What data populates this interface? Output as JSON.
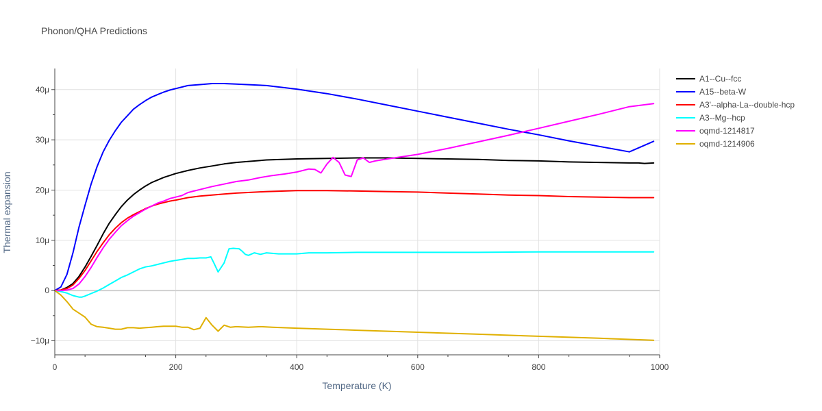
{
  "chart_data": {
    "type": "line",
    "title": "Phonon/QHA Predictions",
    "xlabel": "Temperature (K)",
    "ylabel": "Thermal expansion",
    "xlim": [
      0,
      1000
    ],
    "ylim": [
      -1.28e-05,
      4.42e-05
    ],
    "xticks": [
      0,
      200,
      400,
      600,
      800,
      1000
    ],
    "xtick_labels": [
      "0",
      "200",
      "400",
      "600",
      "800",
      "1000"
    ],
    "yticks": [
      -1e-05,
      0,
      1e-05,
      2e-05,
      3e-05,
      4e-05
    ],
    "ytick_labels": [
      "−10μ",
      "0",
      "10μ",
      "20μ",
      "30μ",
      "40μ"
    ],
    "grid": true,
    "legend_position": "top-right",
    "series": [
      {
        "name": "A1--Cu--fcc",
        "color": "#000000",
        "x": [
          0,
          10,
          20,
          30,
          40,
          50,
          60,
          70,
          80,
          90,
          100,
          110,
          120,
          130,
          140,
          150,
          160,
          170,
          180,
          190,
          200,
          220,
          240,
          260,
          280,
          300,
          350,
          400,
          450,
          500,
          550,
          600,
          650,
          700,
          750,
          800,
          850,
          900,
          950,
          965,
          975,
          990
        ],
        "y": [
          0,
          1e-07,
          6e-07,
          1.4e-06,
          2.8e-06,
          4.7e-06,
          6.8e-06,
          9e-06,
          1.13e-05,
          1.34e-05,
          1.51e-05,
          1.67e-05,
          1.8e-05,
          1.91e-05,
          2e-05,
          2.08e-05,
          2.15e-05,
          2.2e-05,
          2.25e-05,
          2.29e-05,
          2.33e-05,
          2.39e-05,
          2.44e-05,
          2.48e-05,
          2.52e-05,
          2.55e-05,
          2.6e-05,
          2.62e-05,
          2.63e-05,
          2.64e-05,
          2.64e-05,
          2.63e-05,
          2.62e-05,
          2.61e-05,
          2.59e-05,
          2.58e-05,
          2.56e-05,
          2.55e-05,
          2.54e-05,
          2.54e-05,
          2.53e-05,
          2.54e-05
        ]
      },
      {
        "name": "A15--beta-W",
        "color": "#0000ff",
        "x": [
          0,
          10,
          20,
          30,
          40,
          50,
          60,
          70,
          80,
          90,
          100,
          110,
          120,
          130,
          140,
          150,
          160,
          170,
          180,
          190,
          200,
          210,
          220,
          240,
          260,
          280,
          300,
          350,
          400,
          450,
          500,
          550,
          600,
          650,
          700,
          750,
          800,
          850,
          900,
          950,
          990
        ],
        "y": [
          0,
          7e-07,
          3.2e-06,
          7.5e-06,
          1.26e-05,
          1.7e-05,
          2.12e-05,
          2.47e-05,
          2.76e-05,
          2.99e-05,
          3.18e-05,
          3.35e-05,
          3.48e-05,
          3.61e-05,
          3.7e-05,
          3.78e-05,
          3.85e-05,
          3.9e-05,
          3.95e-05,
          3.99e-05,
          4.02e-05,
          4.05e-05,
          4.08e-05,
          4.1e-05,
          4.12e-05,
          4.12e-05,
          4.11e-05,
          4.08e-05,
          4.01e-05,
          3.92e-05,
          3.81e-05,
          3.69e-05,
          3.57e-05,
          3.45e-05,
          3.33e-05,
          3.21e-05,
          3.1e-05,
          2.98e-05,
          2.87e-05,
          2.76e-05,
          2.97e-05
        ]
      },
      {
        "name": "A3'--alpha-La--double-hcp",
        "color": "#ff0000",
        "x": [
          0,
          10,
          20,
          30,
          40,
          50,
          60,
          70,
          80,
          90,
          100,
          110,
          120,
          130,
          140,
          150,
          160,
          170,
          180,
          190,
          200,
          220,
          240,
          260,
          280,
          300,
          350,
          400,
          450,
          500,
          550,
          600,
          650,
          700,
          750,
          800,
          850,
          900,
          950,
          990
        ],
        "y": [
          0,
          1e-07,
          4e-07,
          1.1e-06,
          2.4e-06,
          4e-06,
          5.9e-06,
          7.8e-06,
          9.5e-06,
          1.11e-05,
          1.24e-05,
          1.35e-05,
          1.44e-05,
          1.51e-05,
          1.57e-05,
          1.63e-05,
          1.68e-05,
          1.72e-05,
          1.75e-05,
          1.78e-05,
          1.8e-05,
          1.85e-05,
          1.88e-05,
          1.9e-05,
          1.92e-05,
          1.94e-05,
          1.97e-05,
          1.99e-05,
          1.99e-05,
          1.98e-05,
          1.97e-05,
          1.96e-05,
          1.94e-05,
          1.92e-05,
          1.9e-05,
          1.89e-05,
          1.87e-05,
          1.86e-05,
          1.85e-05,
          1.85e-05
        ]
      },
      {
        "name": "A3--Mg--hcp",
        "color": "#00ffff",
        "x": [
          0,
          10,
          20,
          30,
          40,
          45,
          50,
          60,
          70,
          80,
          90,
          100,
          110,
          120,
          130,
          140,
          150,
          160,
          170,
          180,
          190,
          200,
          210,
          220,
          230,
          240,
          250,
          258,
          263,
          270,
          280,
          288,
          295,
          305,
          310,
          315,
          320,
          330,
          340,
          350,
          360,
          370,
          380,
          400,
          420,
          450,
          500,
          600,
          700,
          800,
          900,
          990
        ],
        "y": [
          0,
          -2e-07,
          -5e-07,
          -1e-06,
          -1.3e-06,
          -1.3e-06,
          -1.1e-06,
          -6e-07,
          -1e-07,
          5e-07,
          1.2e-06,
          1.9e-06,
          2.6e-06,
          3.1e-06,
          3.7e-06,
          4.3e-06,
          4.7e-06,
          4.9e-06,
          5.2e-06,
          5.5e-06,
          5.8e-06,
          6e-06,
          6.2e-06,
          6.4e-06,
          6.4e-06,
          6.5e-06,
          6.5e-06,
          6.7e-06,
          5.5e-06,
          3.7e-06,
          5.5e-06,
          8.3e-06,
          8.4e-06,
          8.3e-06,
          7.8e-06,
          7.2e-06,
          7e-06,
          7.5e-06,
          7.2e-06,
          7.5e-06,
          7.4e-06,
          7.3e-06,
          7.3e-06,
          7.3e-06,
          7.5e-06,
          7.5e-06,
          7.6e-06,
          7.6e-06,
          7.6e-06,
          7.7e-06,
          7.7e-06,
          7.7e-06
        ]
      },
      {
        "name": "oqmd-1214817",
        "color": "#ff00ff",
        "x": [
          0,
          10,
          20,
          30,
          40,
          50,
          60,
          70,
          80,
          90,
          100,
          110,
          120,
          130,
          140,
          150,
          160,
          170,
          180,
          190,
          200,
          210,
          220,
          240,
          260,
          280,
          300,
          320,
          340,
          360,
          380,
          400,
          420,
          430,
          440,
          450,
          460,
          470,
          480,
          490,
          500,
          510,
          520,
          530,
          550,
          600,
          650,
          700,
          750,
          800,
          850,
          900,
          950,
          990
        ],
        "y": [
          0,
          0,
          1e-07,
          4e-07,
          1.3e-06,
          2.8e-06,
          4.6e-06,
          6.6e-06,
          8.5e-06,
          1.02e-05,
          1.16e-05,
          1.29e-05,
          1.39e-05,
          1.48e-05,
          1.55e-05,
          1.62e-05,
          1.68e-05,
          1.74e-05,
          1.78e-05,
          1.83e-05,
          1.86e-05,
          1.89e-05,
          1.95e-05,
          2.01e-05,
          2.07e-05,
          2.12e-05,
          2.17e-05,
          2.2e-05,
          2.25e-05,
          2.29e-05,
          2.32e-05,
          2.36e-05,
          2.42e-05,
          2.41e-05,
          2.34e-05,
          2.52e-05,
          2.65e-05,
          2.55e-05,
          2.3e-05,
          2.27e-05,
          2.6e-05,
          2.64e-05,
          2.55e-05,
          2.58e-05,
          2.62e-05,
          2.71e-05,
          2.83e-05,
          2.96e-05,
          3.09e-05,
          3.23e-05,
          3.37e-05,
          3.51e-05,
          3.66e-05,
          3.72e-05
        ]
      },
      {
        "name": "oqmd-1214906",
        "color": "#e0b000",
        "x": [
          0,
          10,
          20,
          30,
          40,
          50,
          60,
          70,
          80,
          90,
          100,
          110,
          120,
          130,
          140,
          150,
          160,
          170,
          180,
          190,
          200,
          210,
          220,
          230,
          240,
          250,
          260,
          270,
          280,
          290,
          300,
          320,
          340,
          360,
          400,
          450,
          500,
          600,
          700,
          800,
          900,
          990
        ],
        "y": [
          0,
          -9e-07,
          -2.2e-06,
          -3.7e-06,
          -4.5e-06,
          -5.3e-06,
          -6.7e-06,
          -7.2e-06,
          -7.3e-06,
          -7.5e-06,
          -7.7e-06,
          -7.7e-06,
          -7.4e-06,
          -7.4e-06,
          -7.5e-06,
          -7.4e-06,
          -7.3e-06,
          -7.2e-06,
          -7.1e-06,
          -7.1e-06,
          -7.1e-06,
          -7.3e-06,
          -7.3e-06,
          -7.8e-06,
          -7.5e-06,
          -5.4e-06,
          -6.9e-06,
          -8.1e-06,
          -6.9e-06,
          -7.3e-06,
          -7.2e-06,
          -7.3e-06,
          -7.2e-06,
          -7.3e-06,
          -7.5e-06,
          -7.7e-06,
          -7.9e-06,
          -8.3e-06,
          -8.7e-06,
          -9.1e-06,
          -9.5e-06,
          -9.9e-06
        ]
      }
    ]
  }
}
